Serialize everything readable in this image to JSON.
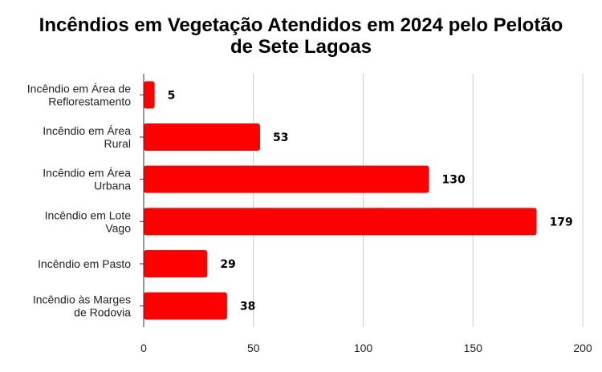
{
  "chart_data": {
    "type": "bar",
    "orientation": "horizontal",
    "title": "Incêndios em Vegetação Atendidos em 2024 pelo Pelotão de Sete Lagoas",
    "title_lines": [
      "Incêndios em Vegetação Atendidos em 2024 pelo Pelotão",
      "de Sete Lagoas"
    ],
    "categories": [
      [
        "Incêndio em Área de",
        "Reflorestamento"
      ],
      [
        "Incêndio em Área",
        "Rural"
      ],
      [
        "Incêndio em Área",
        "Urbana"
      ],
      [
        "Incêndio em Lote",
        "Vago"
      ],
      [
        "Incêndio em Pasto"
      ],
      [
        "Incêndio às Marges",
        "de Rodovia"
      ]
    ],
    "values": [
      5,
      53,
      130,
      179,
      29,
      38
    ],
    "data_labels": [
      "5",
      "53",
      "130",
      "179",
      "29",
      "38"
    ],
    "xlim": [
      0,
      200
    ],
    "xticks": [
      "0",
      "50",
      "100",
      "150",
      "200"
    ],
    "grid": true,
    "bar_color": "#ff0000",
    "grid_color": "#cccccc",
    "xlabel": "",
    "ylabel": ""
  }
}
